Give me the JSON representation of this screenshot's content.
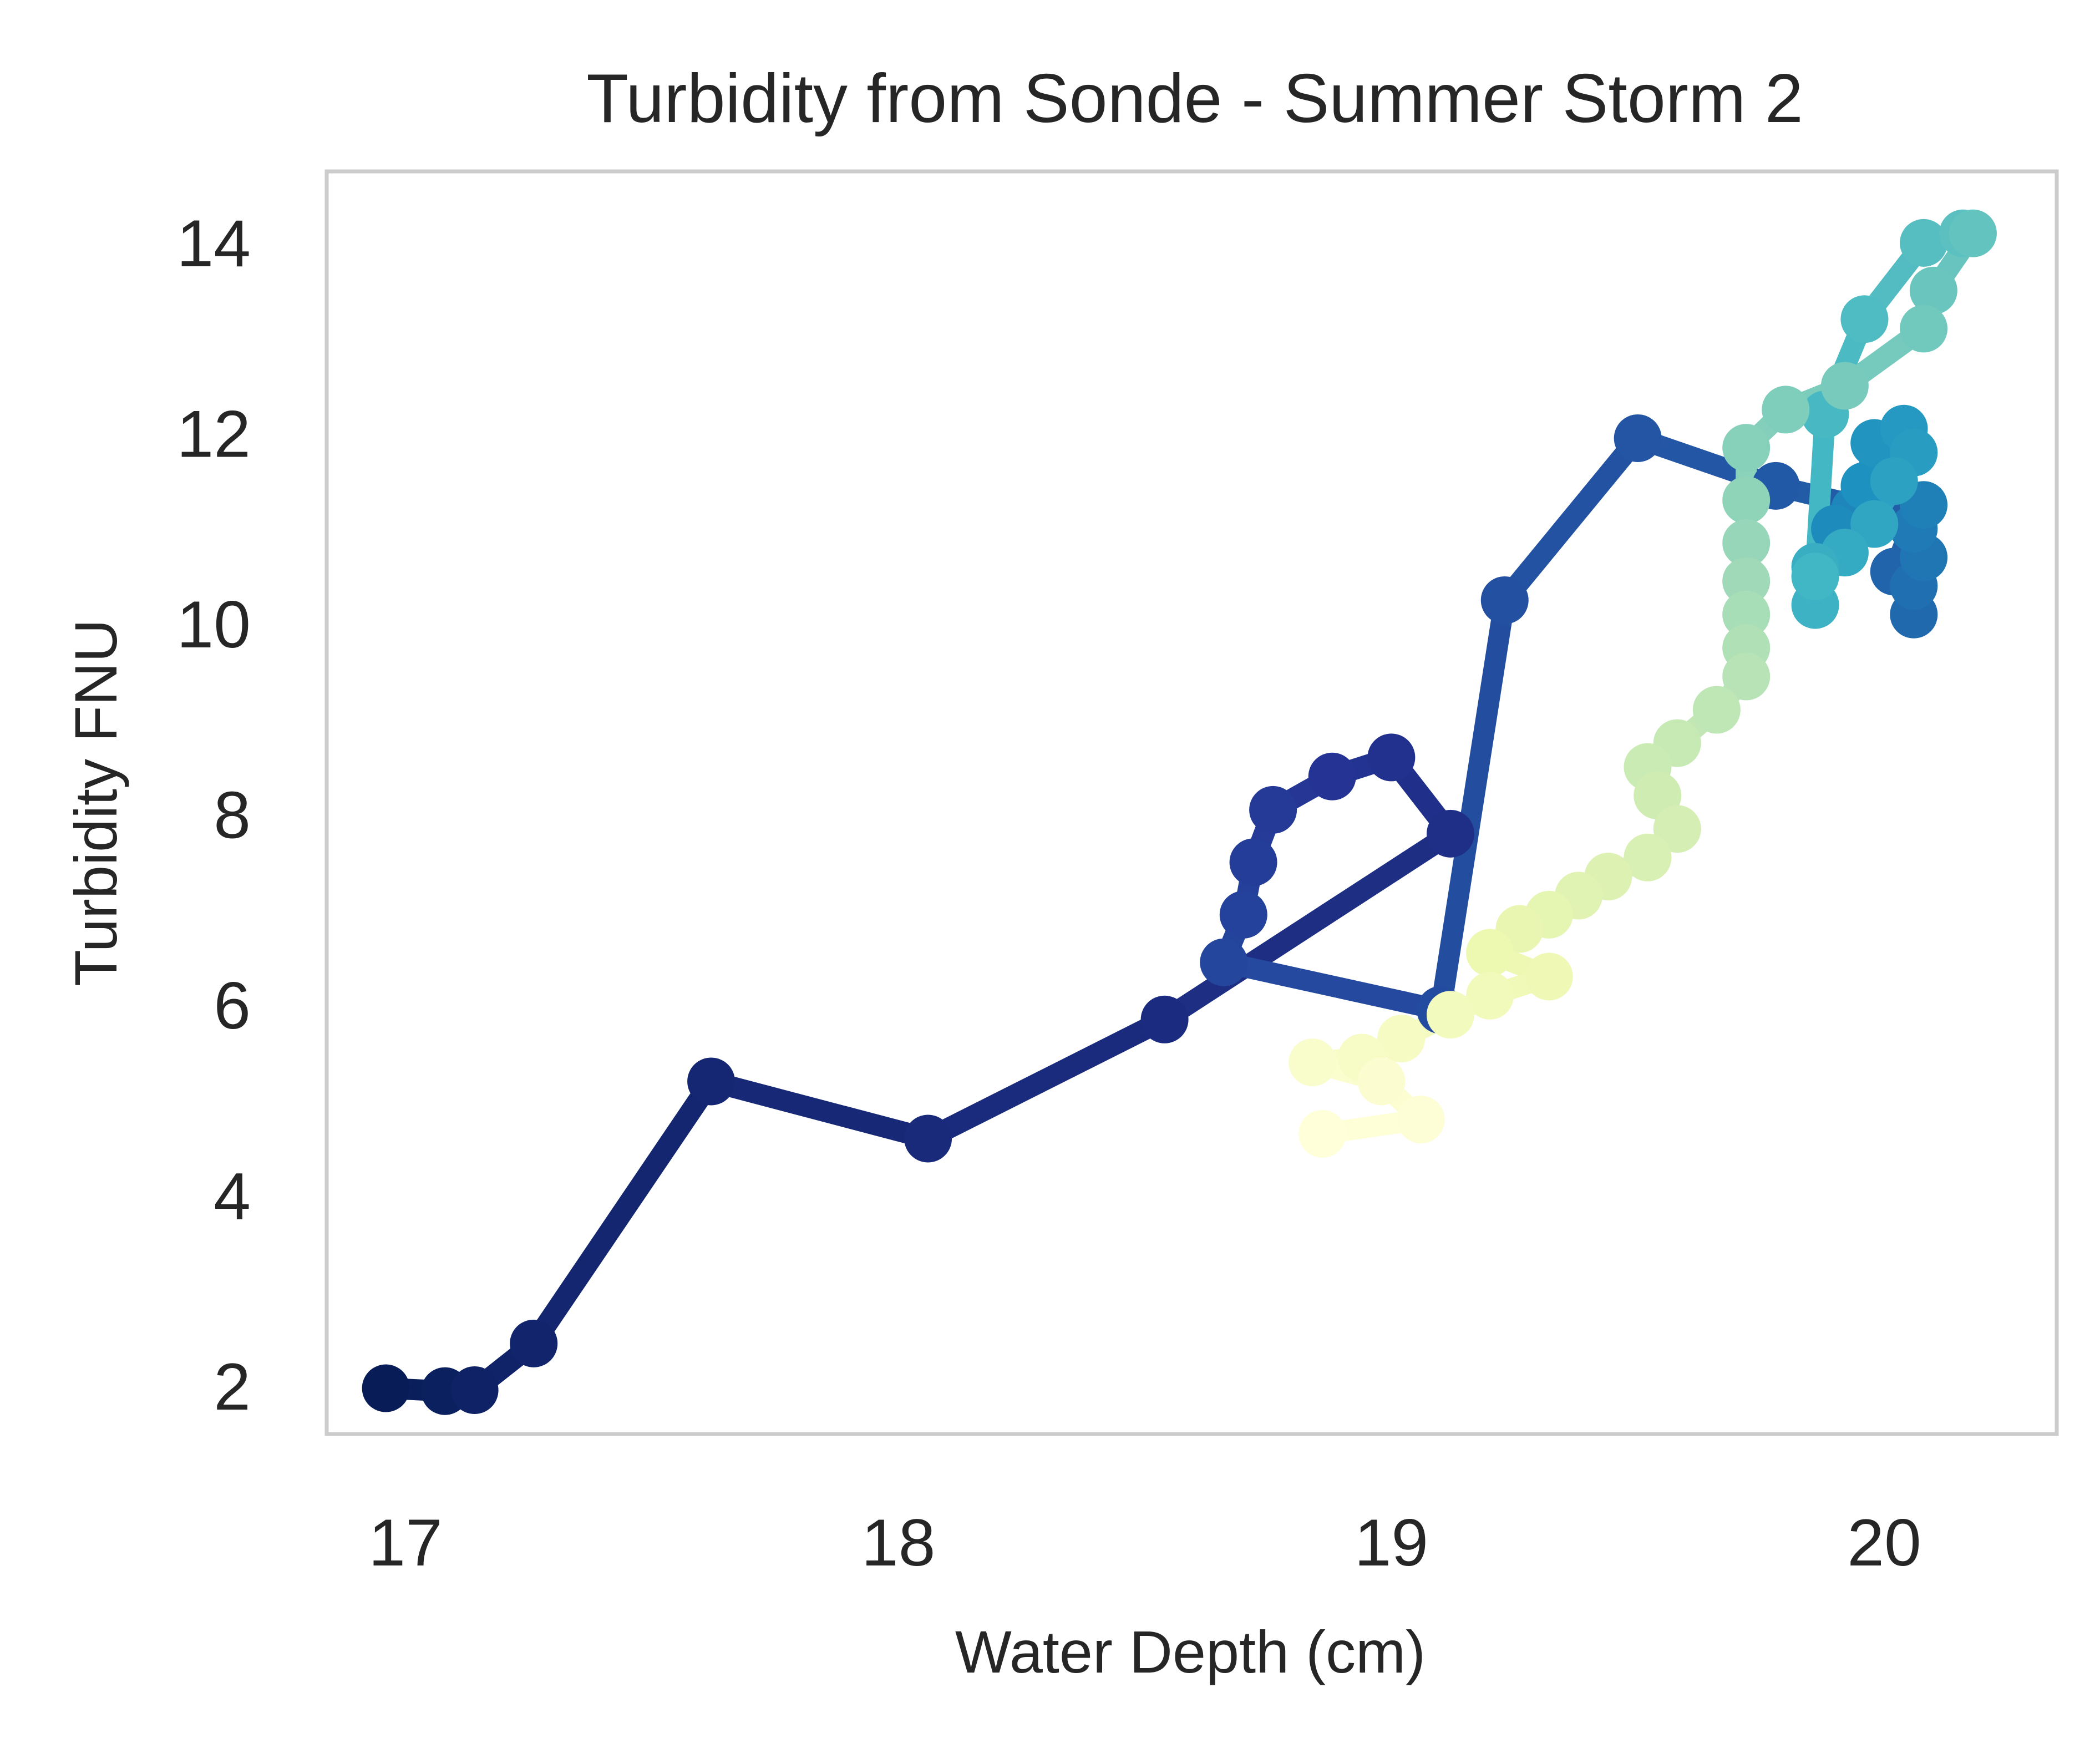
{
  "chart_data": {
    "type": "line",
    "title": "Turbidity from Sonde - Summer Storm 2",
    "xlabel": "Water Depth (cm)",
    "ylabel": "Turbidity FNU",
    "xlim": [
      16.84,
      20.35
    ],
    "ylim": [
      1.5,
      14.75
    ],
    "xticks": [
      17,
      18,
      19,
      20
    ],
    "yticks": [
      2,
      4,
      6,
      8,
      10,
      12,
      14
    ],
    "grid": false,
    "legend": "none",
    "colormap": "YlGnBu_r (dark navy = early, pale yellow = late)",
    "colors": {
      "axes_frame": "#cccccc",
      "text": "#262626",
      "background": "#ffffff"
    },
    "points": [
      {
        "x": 16.96,
        "y": 1.98
      },
      {
        "x": 17.08,
        "y": 1.95
      },
      {
        "x": 17.14,
        "y": 1.96
      },
      {
        "x": 17.26,
        "y": 2.45
      },
      {
        "x": 17.62,
        "y": 5.2
      },
      {
        "x": 18.06,
        "y": 4.6
      },
      {
        "x": 18.54,
        "y": 5.85
      },
      {
        "x": 19.12,
        "y": 7.8
      },
      {
        "x": 19.0,
        "y": 8.6
      },
      {
        "x": 18.88,
        "y": 8.4
      },
      {
        "x": 18.76,
        "y": 8.05
      },
      {
        "x": 18.72,
        "y": 7.5
      },
      {
        "x": 18.7,
        "y": 6.95
      },
      {
        "x": 18.66,
        "y": 6.45
      },
      {
        "x": 19.1,
        "y": 5.95
      },
      {
        "x": 19.23,
        "y": 10.25
      },
      {
        "x": 19.5,
        "y": 11.95
      },
      {
        "x": 19.78,
        "y": 11.45
      },
      {
        "x": 20.06,
        "y": 11.1
      },
      {
        "x": 20.02,
        "y": 10.55
      },
      {
        "x": 20.06,
        "y": 10.1
      },
      {
        "x": 20.06,
        "y": 10.4
      },
      {
        "x": 20.08,
        "y": 10.7
      },
      {
        "x": 20.06,
        "y": 11.0
      },
      {
        "x": 20.08,
        "y": 11.25
      },
      {
        "x": 19.94,
        "y": 11.2
      },
      {
        "x": 19.9,
        "y": 11.0
      },
      {
        "x": 19.96,
        "y": 11.45
      },
      {
        "x": 19.98,
        "y": 11.9
      },
      {
        "x": 20.04,
        "y": 12.05
      },
      {
        "x": 20.06,
        "y": 11.8
      },
      {
        "x": 20.02,
        "y": 11.5
      },
      {
        "x": 19.98,
        "y": 11.05
      },
      {
        "x": 19.92,
        "y": 10.75
      },
      {
        "x": 19.86,
        "y": 10.6
      },
      {
        "x": 19.86,
        "y": 10.2
      },
      {
        "x": 19.86,
        "y": 10.5
      },
      {
        "x": 19.88,
        "y": 12.2
      },
      {
        "x": 19.96,
        "y": 13.2
      },
      {
        "x": 20.08,
        "y": 14.0
      },
      {
        "x": 20.16,
        "y": 14.1
      },
      {
        "x": 20.18,
        "y": 14.1
      },
      {
        "x": 20.1,
        "y": 13.5
      },
      {
        "x": 20.08,
        "y": 13.1
      },
      {
        "x": 19.92,
        "y": 12.5
      },
      {
        "x": 19.8,
        "y": 12.25
      },
      {
        "x": 19.72,
        "y": 11.85
      },
      {
        "x": 19.72,
        "y": 11.3
      },
      {
        "x": 19.72,
        "y": 10.85
      },
      {
        "x": 19.72,
        "y": 10.45
      },
      {
        "x": 19.72,
        "y": 10.1
      },
      {
        "x": 19.72,
        "y": 9.75
      },
      {
        "x": 19.72,
        "y": 9.45
      },
      {
        "x": 19.66,
        "y": 9.1
      },
      {
        "x": 19.58,
        "y": 8.75
      },
      {
        "x": 19.52,
        "y": 8.5
      },
      {
        "x": 19.54,
        "y": 8.2
      },
      {
        "x": 19.58,
        "y": 7.85
      },
      {
        "x": 19.52,
        "y": 7.55
      },
      {
        "x": 19.44,
        "y": 7.35
      },
      {
        "x": 19.38,
        "y": 7.15
      },
      {
        "x": 19.32,
        "y": 6.95
      },
      {
        "x": 19.26,
        "y": 6.8
      },
      {
        "x": 19.2,
        "y": 6.55
      },
      {
        "x": 19.32,
        "y": 6.3
      },
      {
        "x": 19.2,
        "y": 6.1
      },
      {
        "x": 19.12,
        "y": 5.9
      },
      {
        "x": 19.02,
        "y": 5.65
      },
      {
        "x": 18.94,
        "y": 5.45
      },
      {
        "x": 18.84,
        "y": 5.4
      },
      {
        "x": 18.98,
        "y": 5.2
      },
      {
        "x": 19.06,
        "y": 4.8
      },
      {
        "x": 18.86,
        "y": 4.65
      }
    ]
  }
}
